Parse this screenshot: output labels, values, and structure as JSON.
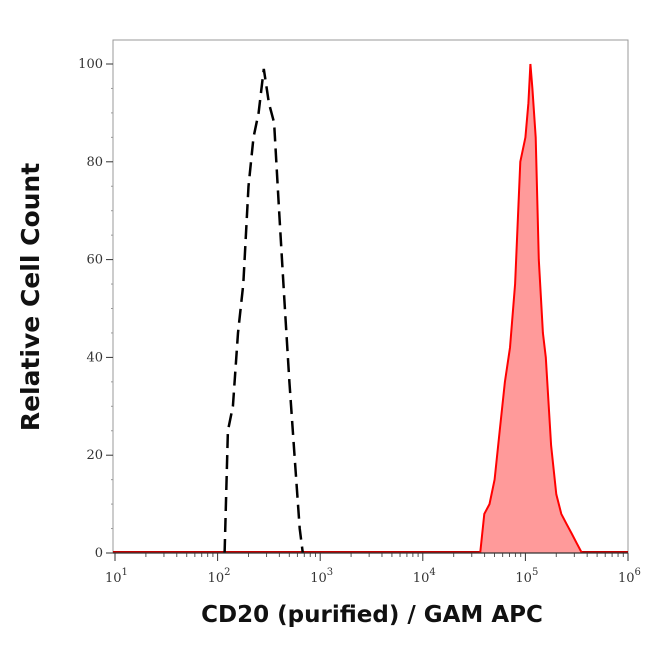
{
  "chart_data": {
    "type": "area",
    "title": "",
    "xlabel": "CD20 (purified) / GAM APC",
    "ylabel": "Relative Cell Count",
    "xscale": "log",
    "xlim": [
      10,
      1000000
    ],
    "ylim": [
      0,
      100
    ],
    "x_ticks": [
      {
        "base": "10",
        "exp": "1",
        "value": 10
      },
      {
        "base": "10",
        "exp": "2",
        "value": 100
      },
      {
        "base": "10",
        "exp": "3",
        "value": 1000
      },
      {
        "base": "10",
        "exp": "4",
        "value": 10000
      },
      {
        "base": "10",
        "exp": "5",
        "value": 100000
      },
      {
        "base": "10",
        "exp": "6",
        "value": 1000000
      }
    ],
    "y_ticks": [
      "0",
      "20",
      "40",
      "60",
      "80",
      "100"
    ],
    "grid": false,
    "series": [
      {
        "style": "dashed-line",
        "color": "#000000",
        "x": [
          117,
          126,
          141,
          158,
          178,
          200,
          224,
          251,
          282,
          316,
          355,
          398,
          447,
          501,
          562,
          631,
          676
        ],
        "y": [
          0,
          25,
          30,
          45,
          55,
          75,
          85,
          90,
          99,
          92,
          88,
          70,
          52,
          35,
          20,
          5,
          0
        ]
      },
      {
        "style": "filled",
        "color": "#ff0000",
        "fill": "#ff9a9a",
        "x": [
          36300,
          39800,
          44700,
          50100,
          56200,
          63100,
          70800,
          79400,
          89100,
          100000,
          107000,
          112000,
          117000,
          126000,
          135000,
          148000,
          158000,
          178000,
          200000,
          224000,
          251000,
          282000,
          316000,
          355000
        ],
        "y": [
          0,
          8,
          10,
          15,
          25,
          35,
          42,
          55,
          80,
          85,
          92,
          100,
          95,
          85,
          60,
          45,
          40,
          22,
          12,
          8,
          6,
          4,
          2,
          0
        ]
      }
    ]
  }
}
